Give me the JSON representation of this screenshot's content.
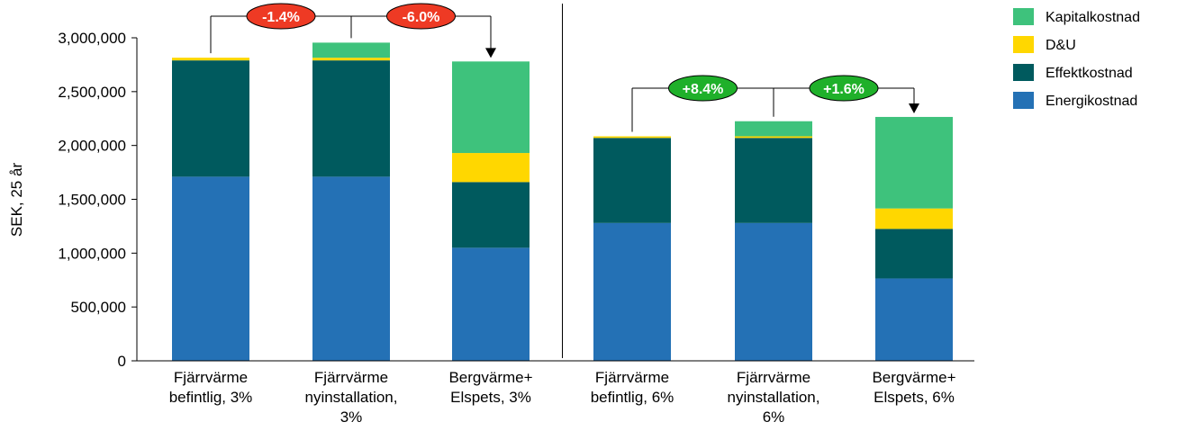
{
  "chart_data": {
    "type": "bar",
    "stacked": true,
    "ylabel": "SEK, 25 år",
    "ylim": [
      0,
      3000000
    ],
    "y_ticks": [
      0,
      500000,
      1000000,
      1500000,
      2000000,
      2500000,
      3000000
    ],
    "y_tick_labels": [
      "0",
      "500,000",
      "1,000,000",
      "1,500,000",
      "2,000,000",
      "2,500,000",
      "3,000,000"
    ],
    "categories": [
      [
        "Fjärrvärme",
        "befintlig, 3%"
      ],
      [
        "Fjärrvärme",
        "nyinstallation,",
        "3%"
      ],
      [
        "Bergvärme+",
        "Elspets, 3%"
      ],
      [
        "Fjärrvärme",
        "befintlig, 6%"
      ],
      [
        "Fjärrvärme",
        "nyinstallation,",
        "6%"
      ],
      [
        "Bergvärme+",
        "Elspets, 6%"
      ]
    ],
    "series": [
      {
        "name": "Energikostnad",
        "color": "#2471b5",
        "values": [
          1710000,
          1710000,
          1050000,
          1280000,
          1280000,
          765000
        ]
      },
      {
        "name": "Effektkostnad",
        "color": "#005a5e",
        "values": [
          1080000,
          1080000,
          610000,
          790000,
          790000,
          460000
        ]
      },
      {
        "name": "D&U",
        "color": "#ffd700",
        "values": [
          25000,
          25000,
          270000,
          15000,
          15000,
          190000
        ]
      },
      {
        "name": "Kapitalkostnad",
        "color": "#3ec27c",
        "values": [
          0,
          140000,
          850000,
          0,
          140000,
          850000
        ]
      }
    ],
    "legend": {
      "position": "top-right",
      "order": [
        "Kapitalkostnad",
        "D&U",
        "Effektkostnad",
        "Energikostnad"
      ]
    },
    "annotations": [
      {
        "label": "-1.4%",
        "color": "#ee3a24",
        "from": 0,
        "to": 1
      },
      {
        "label": "-6.0%",
        "color": "#ee3a24",
        "from": 1,
        "to": 2
      },
      {
        "label": "+8.4%",
        "color": "#1fb02a",
        "from": 3,
        "to": 4
      },
      {
        "label": "+1.6%",
        "color": "#1fb02a",
        "from": 4,
        "to": 5
      }
    ],
    "group_divider_after_category": 2
  }
}
